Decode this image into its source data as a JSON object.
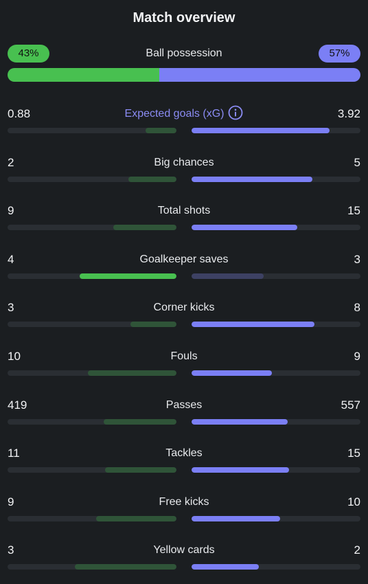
{
  "title": "Match overview",
  "colors": {
    "home_strong": "#48c050",
    "home_weak": "#2f5438",
    "away_strong": "#7b7ff5",
    "away_weak": "#3d4163",
    "track": "#2a2e33"
  },
  "possession": {
    "label": "Ball possession",
    "home_text": "43%",
    "away_text": "57%",
    "home_fraction": 0.43,
    "away_fraction": 0.57
  },
  "stats": [
    {
      "label": "Expected goals (xG)",
      "home": "0.88",
      "away": "3.92",
      "home_num": 0.88,
      "away_num": 3.92,
      "accent": true,
      "info_icon": "info-circle-icon",
      "winner": "away"
    },
    {
      "label": "Big chances",
      "home": "2",
      "away": "5",
      "home_num": 2,
      "away_num": 5,
      "winner": "away"
    },
    {
      "label": "Total shots",
      "home": "9",
      "away": "15",
      "home_num": 9,
      "away_num": 15,
      "winner": "away"
    },
    {
      "label": "Goalkeeper saves",
      "home": "4",
      "away": "3",
      "home_num": 4,
      "away_num": 3,
      "winner": "home"
    },
    {
      "label": "Corner kicks",
      "home": "3",
      "away": "8",
      "home_num": 3,
      "away_num": 8,
      "winner": "away"
    },
    {
      "label": "Fouls",
      "home": "10",
      "away": "9",
      "home_num": 10,
      "away_num": 9,
      "winner": "away"
    },
    {
      "label": "Passes",
      "home": "419",
      "away": "557",
      "home_num": 419,
      "away_num": 557,
      "winner": "away"
    },
    {
      "label": "Tackles",
      "home": "11",
      "away": "15",
      "home_num": 11,
      "away_num": 15,
      "winner": "away"
    },
    {
      "label": "Free kicks",
      "home": "9",
      "away": "10",
      "home_num": 9,
      "away_num": 10,
      "winner": "away"
    },
    {
      "label": "Yellow cards",
      "home": "3",
      "away": "2",
      "home_num": 3,
      "away_num": 2,
      "winner": "away"
    }
  ]
}
